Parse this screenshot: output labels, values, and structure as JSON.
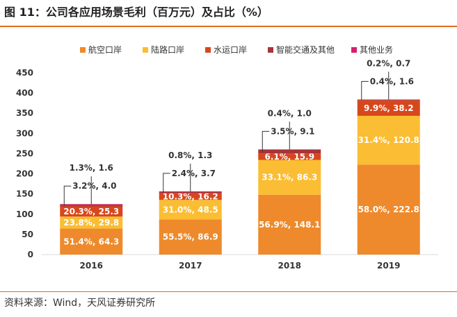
{
  "header": {
    "title": "图 11：公司各应用场景毛利（百万元）及占比（%）"
  },
  "footer": {
    "source": "资料来源：Wind，天风证券研究所"
  },
  "colors": {
    "航空口岸": "#ee8a2b",
    "陆路口岸": "#fbbd33",
    "水运口岸": "#d8471c",
    "智能交通及其他": "#a8333a",
    "其他业务": "#d61f6f",
    "accent_rule": "#e36c19"
  },
  "chart_data": {
    "type": "bar",
    "stacked": true,
    "categories": [
      "2016",
      "2017",
      "2018",
      "2019"
    ],
    "series": [
      {
        "name": "航空口岸",
        "values": [
          64.3,
          86.9,
          148.1,
          222.8
        ],
        "labels": [
          "51.4%, 64.3",
          "55.5%, 86.9",
          "56.9%, 148.1",
          "58.0%, 222.8"
        ]
      },
      {
        "name": "陆路口岸",
        "values": [
          29.8,
          48.5,
          86.3,
          120.8
        ],
        "labels": [
          "23.8%, 29.8",
          "31.0%, 48.5",
          "33.1%, 86.3",
          "31.4%, 120.8"
        ]
      },
      {
        "name": "水运口岸",
        "values": [
          25.3,
          16.2,
          15.9,
          38.2
        ],
        "labels": [
          "20.3%, 25.3",
          "10.3%, 16.2",
          "6.1%, 15.9",
          "9.9%, 38.2"
        ]
      },
      {
        "name": "智能交通及其他",
        "values": [
          4.0,
          3.7,
          9.1,
          1.6
        ],
        "labels": [
          "3.2%, 4.0",
          "2.4%, 3.7",
          "3.5%, 9.1",
          "0.4%, 1.6"
        ]
      },
      {
        "name": "其他业务",
        "values": [
          1.6,
          1.3,
          1.0,
          0.7
        ],
        "labels": [
          "1.3%, 1.6",
          "0.8%, 1.3",
          "0.4%, 1.0",
          "0.2%, 0.7"
        ]
      }
    ],
    "ylim": [
      0,
      450
    ],
    "yticks": [
      0,
      50,
      100,
      150,
      200,
      250,
      300,
      350,
      400,
      450
    ],
    "legend_position": "top",
    "grid": false
  }
}
